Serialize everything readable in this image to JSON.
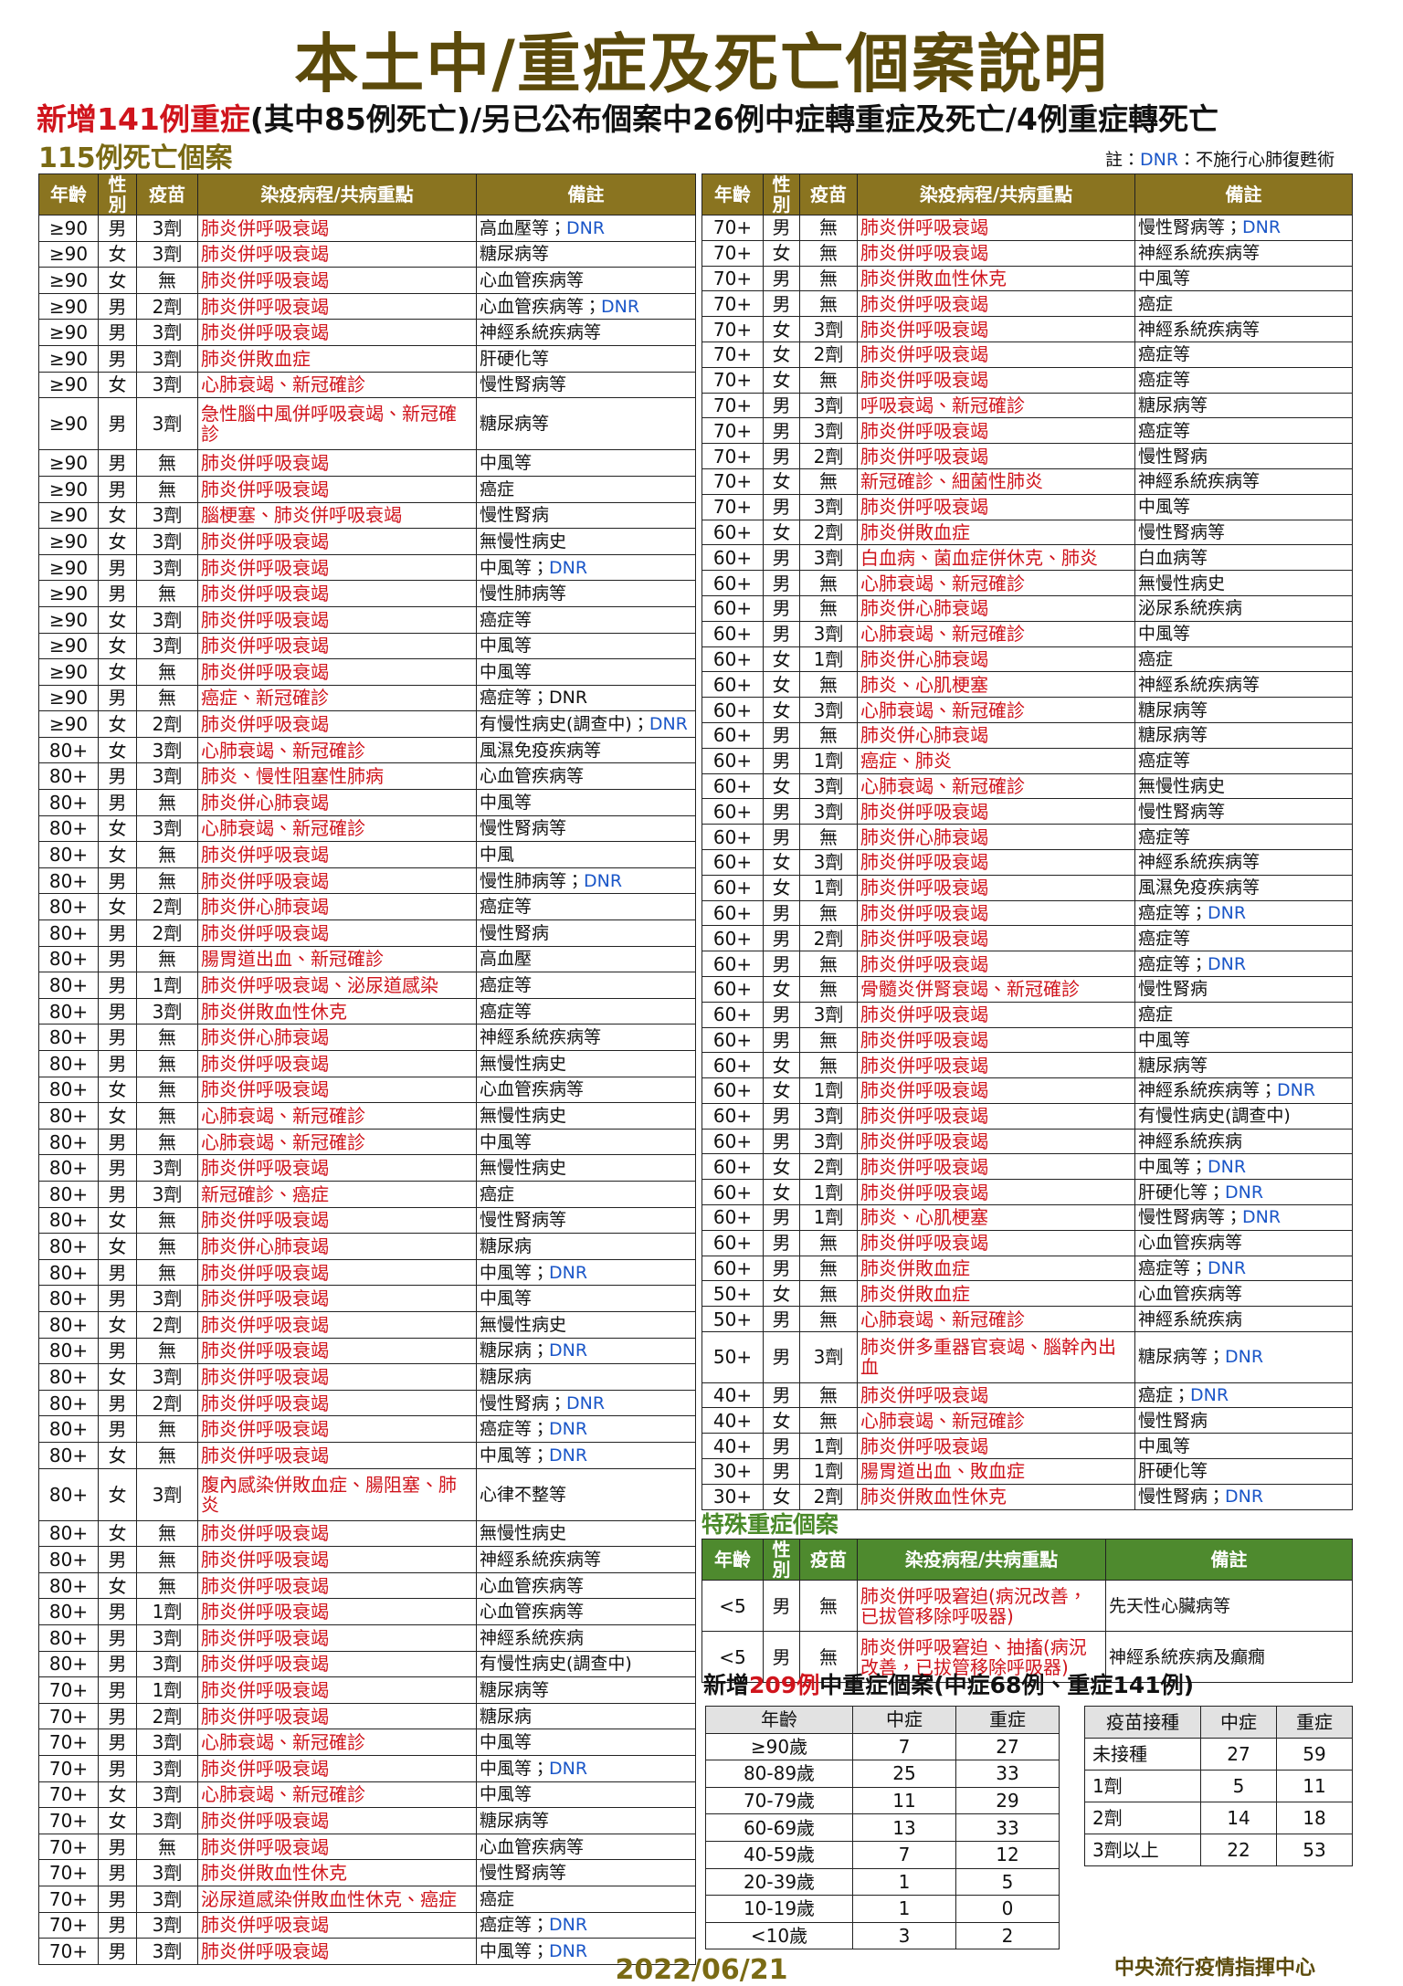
{
  "header": {
    "title": "本土中/重症及死亡個案說明",
    "subtitle_highlight": "新增141例重症",
    "subtitle_rest": "(其中85例死亡)/另已公布個案中26例中症轉重症及死亡/4例重症轉死亡"
  },
  "deaths": {
    "title": "115例死亡個案",
    "note": {
      "label": "註：",
      "dnr": "DNR",
      "text": "：不施行心肺復甦術"
    },
    "columns": [
      "年齡",
      "性別",
      "疫苗",
      "染疫病程/共病重點",
      "備註"
    ],
    "left_rows": [
      [
        "≥90",
        "男",
        "3劑",
        "肺炎併呼吸衰竭",
        "高血壓等；",
        "DNR"
      ],
      [
        "≥90",
        "女",
        "3劑",
        "肺炎併呼吸衰竭",
        "糖尿病等"
      ],
      [
        "≥90",
        "女",
        "無",
        "肺炎併呼吸衰竭",
        "心血管疾病等"
      ],
      [
        "≥90",
        "男",
        "2劑",
        "肺炎併呼吸衰竭",
        "心血管疾病等；",
        "DNR"
      ],
      [
        "≥90",
        "男",
        "3劑",
        "肺炎併呼吸衰竭",
        "神經系統疾病等"
      ],
      [
        "≥90",
        "男",
        "3劑",
        "肺炎併敗血症",
        "肝硬化等"
      ],
      [
        "≥90",
        "女",
        "3劑",
        "心肺衰竭、新冠確診",
        "慢性腎病等"
      ],
      [
        "≥90",
        "男",
        "3劑",
        "急性腦中風併呼吸衰竭、新冠確診",
        "糖尿病等"
      ],
      [
        "≥90",
        "男",
        "無",
        "肺炎併呼吸衰竭",
        "中風等"
      ],
      [
        "≥90",
        "男",
        "無",
        "肺炎併呼吸衰竭",
        "癌症"
      ],
      [
        "≥90",
        "女",
        "3劑",
        "腦梗塞、肺炎併呼吸衰竭",
        "慢性腎病"
      ],
      [
        "≥90",
        "女",
        "3劑",
        "肺炎併呼吸衰竭",
        "無慢性病史"
      ],
      [
        "≥90",
        "男",
        "3劑",
        "肺炎併呼吸衰竭",
        "中風等；",
        "DNR"
      ],
      [
        "≥90",
        "男",
        "無",
        "肺炎併呼吸衰竭",
        "慢性肺病等"
      ],
      [
        "≥90",
        "女",
        "3劑",
        "肺炎併呼吸衰竭",
        "癌症等"
      ],
      [
        "≥90",
        "女",
        "3劑",
        "肺炎併呼吸衰竭",
        "中風等"
      ],
      [
        "≥90",
        "女",
        "無",
        "肺炎併呼吸衰竭",
        "中風等"
      ],
      [
        "≥90",
        "男",
        "無",
        "癌症、新冠確診",
        "癌症等；DNR"
      ],
      [
        "≥90",
        "女",
        "2劑",
        "肺炎併呼吸衰竭",
        "有慢性病史(調查中)；",
        "DNR"
      ],
      [
        "80+",
        "女",
        "3劑",
        "心肺衰竭、新冠確診",
        "風濕免疫疾病等"
      ],
      [
        "80+",
        "男",
        "3劑",
        "肺炎、慢性阻塞性肺病",
        "心血管疾病等"
      ],
      [
        "80+",
        "男",
        "無",
        "肺炎併心肺衰竭",
        "中風等"
      ],
      [
        "80+",
        "女",
        "3劑",
        "心肺衰竭、新冠確診",
        "慢性腎病等"
      ],
      [
        "80+",
        "女",
        "無",
        "肺炎併呼吸衰竭",
        "中風"
      ],
      [
        "80+",
        "男",
        "無",
        "肺炎併呼吸衰竭",
        "慢性肺病等；",
        "DNR"
      ],
      [
        "80+",
        "女",
        "2劑",
        "肺炎併心肺衰竭",
        "癌症等"
      ],
      [
        "80+",
        "男",
        "2劑",
        "肺炎併呼吸衰竭",
        "慢性腎病"
      ],
      [
        "80+",
        "男",
        "無",
        "腸胃道出血、新冠確診",
        "高血壓"
      ],
      [
        "80+",
        "男",
        "1劑",
        "肺炎併呼吸衰竭、泌尿道感染",
        "癌症等"
      ],
      [
        "80+",
        "男",
        "3劑",
        "肺炎併敗血性休克",
        "癌症等"
      ],
      [
        "80+",
        "男",
        "無",
        "肺炎併心肺衰竭",
        "神經系統疾病等"
      ],
      [
        "80+",
        "男",
        "無",
        "肺炎併呼吸衰竭",
        "無慢性病史"
      ],
      [
        "80+",
        "女",
        "無",
        "肺炎併呼吸衰竭",
        "心血管疾病等"
      ],
      [
        "80+",
        "女",
        "無",
        "心肺衰竭、新冠確診",
        "無慢性病史"
      ],
      [
        "80+",
        "男",
        "無",
        "心肺衰竭、新冠確診",
        "中風等"
      ],
      [
        "80+",
        "男",
        "3劑",
        "肺炎併呼吸衰竭",
        "無慢性病史"
      ],
      [
        "80+",
        "男",
        "3劑",
        "新冠確診、癌症",
        "癌症"
      ],
      [
        "80+",
        "女",
        "無",
        "肺炎併呼吸衰竭",
        "慢性腎病等"
      ],
      [
        "80+",
        "女",
        "無",
        "肺炎併心肺衰竭",
        "糖尿病"
      ],
      [
        "80+",
        "男",
        "無",
        "肺炎併呼吸衰竭",
        "中風等；",
        "DNR"
      ],
      [
        "80+",
        "男",
        "3劑",
        "肺炎併呼吸衰竭",
        "中風等"
      ],
      [
        "80+",
        "女",
        "2劑",
        "肺炎併呼吸衰竭",
        "無慢性病史"
      ],
      [
        "80+",
        "男",
        "無",
        "肺炎併呼吸衰竭",
        "糖尿病；",
        "DNR"
      ],
      [
        "80+",
        "女",
        "3劑",
        "肺炎併呼吸衰竭",
        "糖尿病"
      ],
      [
        "80+",
        "男",
        "2劑",
        "肺炎併呼吸衰竭",
        "慢性腎病；",
        "DNR"
      ],
      [
        "80+",
        "男",
        "無",
        "肺炎併呼吸衰竭",
        "癌症等；",
        "DNR"
      ],
      [
        "80+",
        "女",
        "無",
        "肺炎併呼吸衰竭",
        "中風等；",
        "DNR"
      ],
      [
        "80+",
        "女",
        "3劑",
        "腹內感染併敗血症、腸阻塞、肺炎",
        "心律不整等"
      ],
      [
        "80+",
        "女",
        "無",
        "肺炎併呼吸衰竭",
        "無慢性病史"
      ],
      [
        "80+",
        "男",
        "無",
        "肺炎併呼吸衰竭",
        "神經系統疾病等"
      ],
      [
        "80+",
        "女",
        "無",
        "肺炎併呼吸衰竭",
        "心血管疾病等"
      ],
      [
        "80+",
        "男",
        "1劑",
        "肺炎併呼吸衰竭",
        "心血管疾病等"
      ],
      [
        "80+",
        "男",
        "3劑",
        "肺炎併呼吸衰竭",
        "神經系統疾病"
      ],
      [
        "80+",
        "男",
        "3劑",
        "肺炎併呼吸衰竭",
        "有慢性病史(調查中)"
      ],
      [
        "70+",
        "男",
        "1劑",
        "肺炎併呼吸衰竭",
        "糖尿病等"
      ],
      [
        "70+",
        "男",
        "2劑",
        "肺炎併呼吸衰竭",
        "糖尿病"
      ],
      [
        "70+",
        "男",
        "3劑",
        "心肺衰竭、新冠確診",
        "中風等"
      ],
      [
        "70+",
        "男",
        "3劑",
        "肺炎併呼吸衰竭",
        "中風等；",
        "DNR"
      ],
      [
        "70+",
        "女",
        "3劑",
        "心肺衰竭、新冠確診",
        "中風等"
      ],
      [
        "70+",
        "女",
        "3劑",
        "肺炎併呼吸衰竭",
        "糖尿病等"
      ],
      [
        "70+",
        "男",
        "無",
        "肺炎併呼吸衰竭",
        "心血管疾病等"
      ],
      [
        "70+",
        "男",
        "3劑",
        "肺炎併敗血性休克",
        "慢性腎病等"
      ],
      [
        "70+",
        "男",
        "3劑",
        "泌尿道感染併敗血性休克、癌症",
        "癌症"
      ],
      [
        "70+",
        "男",
        "3劑",
        "肺炎併呼吸衰竭",
        "癌症等；",
        "DNR"
      ],
      [
        "70+",
        "男",
        "3劑",
        "肺炎併呼吸衰竭",
        "中風等；",
        "DNR"
      ]
    ],
    "right_rows": [
      [
        "70+",
        "男",
        "無",
        "肺炎併呼吸衰竭",
        "慢性腎病等；",
        "DNR"
      ],
      [
        "70+",
        "女",
        "無",
        "肺炎併呼吸衰竭",
        "神經系統疾病等"
      ],
      [
        "70+",
        "男",
        "無",
        "肺炎併敗血性休克",
        "中風等"
      ],
      [
        "70+",
        "男",
        "無",
        "肺炎併呼吸衰竭",
        "癌症"
      ],
      [
        "70+",
        "女",
        "3劑",
        "肺炎併呼吸衰竭",
        "神經系統疾病等"
      ],
      [
        "70+",
        "女",
        "2劑",
        "肺炎併呼吸衰竭",
        "癌症等"
      ],
      [
        "70+",
        "女",
        "無",
        "肺炎併呼吸衰竭",
        "癌症等"
      ],
      [
        "70+",
        "男",
        "3劑",
        "呼吸衰竭、新冠確診",
        "糖尿病等"
      ],
      [
        "70+",
        "男",
        "3劑",
        "肺炎併呼吸衰竭",
        "癌症等"
      ],
      [
        "70+",
        "男",
        "2劑",
        "肺炎併呼吸衰竭",
        "慢性腎病"
      ],
      [
        "70+",
        "女",
        "無",
        "新冠確診、細菌性肺炎",
        "神經系統疾病等"
      ],
      [
        "70+",
        "男",
        "3劑",
        "肺炎併呼吸衰竭",
        "中風等"
      ],
      [
        "60+",
        "女",
        "2劑",
        "肺炎併敗血症",
        "慢性腎病等"
      ],
      [
        "60+",
        "男",
        "3劑",
        "白血病、菌血症併休克、肺炎",
        "白血病等"
      ],
      [
        "60+",
        "男",
        "無",
        "心肺衰竭、新冠確診",
        "無慢性病史"
      ],
      [
        "60+",
        "男",
        "無",
        "肺炎併心肺衰竭",
        "泌尿系統疾病"
      ],
      [
        "60+",
        "男",
        "3劑",
        "心肺衰竭、新冠確診",
        "中風等"
      ],
      [
        "60+",
        "女",
        "1劑",
        "肺炎併心肺衰竭",
        "癌症"
      ],
      [
        "60+",
        "女",
        "無",
        "肺炎、心肌梗塞",
        "神經系統疾病等"
      ],
      [
        "60+",
        "女",
        "3劑",
        "心肺衰竭、新冠確診",
        "糖尿病等"
      ],
      [
        "60+",
        "男",
        "無",
        "肺炎併心肺衰竭",
        "糖尿病等"
      ],
      [
        "60+",
        "男",
        "1劑",
        "癌症、肺炎",
        "癌症等"
      ],
      [
        "60+",
        "女",
        "3劑",
        "心肺衰竭、新冠確診",
        "無慢性病史"
      ],
      [
        "60+",
        "男",
        "3劑",
        "肺炎併呼吸衰竭",
        "慢性腎病等"
      ],
      [
        "60+",
        "男",
        "無",
        "肺炎併心肺衰竭",
        "癌症等"
      ],
      [
        "60+",
        "女",
        "3劑",
        "肺炎併呼吸衰竭",
        "神經系統疾病等"
      ],
      [
        "60+",
        "女",
        "1劑",
        "肺炎併呼吸衰竭",
        "風濕免疫疾病等"
      ],
      [
        "60+",
        "男",
        "無",
        "肺炎併呼吸衰竭",
        "癌症等；",
        "DNR"
      ],
      [
        "60+",
        "男",
        "2劑",
        "肺炎併呼吸衰竭",
        "癌症等"
      ],
      [
        "60+",
        "男",
        "無",
        "肺炎併呼吸衰竭",
        "癌症等；",
        "DNR"
      ],
      [
        "60+",
        "女",
        "無",
        "骨髓炎併腎衰竭、新冠確診",
        "慢性腎病"
      ],
      [
        "60+",
        "男",
        "3劑",
        "肺炎併呼吸衰竭",
        "癌症"
      ],
      [
        "60+",
        "男",
        "無",
        "肺炎併呼吸衰竭",
        "中風等"
      ],
      [
        "60+",
        "女",
        "無",
        "肺炎併呼吸衰竭",
        "糖尿病等"
      ],
      [
        "60+",
        "女",
        "1劑",
        "肺炎併呼吸衰竭",
        "神經系統疾病等；",
        "DNR"
      ],
      [
        "60+",
        "男",
        "3劑",
        "肺炎併呼吸衰竭",
        "有慢性病史(調查中)"
      ],
      [
        "60+",
        "男",
        "3劑",
        "肺炎併呼吸衰竭",
        "神經系統疾病"
      ],
      [
        "60+",
        "女",
        "2劑",
        "肺炎併呼吸衰竭",
        "中風等；",
        "DNR"
      ],
      [
        "60+",
        "女",
        "1劑",
        "肺炎併呼吸衰竭",
        "肝硬化等；",
        "DNR"
      ],
      [
        "60+",
        "男",
        "1劑",
        "肺炎、心肌梗塞",
        "慢性腎病等；",
        "DNR"
      ],
      [
        "60+",
        "男",
        "無",
        "肺炎併呼吸衰竭",
        "心血管疾病等"
      ],
      [
        "60+",
        "男",
        "無",
        "肺炎併敗血症",
        "癌症等；",
        "DNR"
      ],
      [
        "50+",
        "女",
        "無",
        "肺炎併敗血症",
        "心血管疾病等"
      ],
      [
        "50+",
        "男",
        "無",
        "心肺衰竭、新冠確診",
        "神經系統疾病"
      ],
      [
        "50+",
        "男",
        "3劑",
        "肺炎併多重器官衰竭、腦幹內出血",
        "糖尿病等；",
        "DNR"
      ],
      [
        "40+",
        "男",
        "無",
        "肺炎併呼吸衰竭",
        "癌症；",
        "DNR"
      ],
      [
        "40+",
        "女",
        "無",
        "心肺衰竭、新冠確診",
        "慢性腎病"
      ],
      [
        "40+",
        "男",
        "1劑",
        "肺炎併呼吸衰竭",
        "中風等"
      ],
      [
        "30+",
        "男",
        "1劑",
        "腸胃道出血、敗血症",
        "肝硬化等"
      ],
      [
        "30+",
        "女",
        "2劑",
        "肺炎併敗血性休克",
        "慢性腎病；",
        "DNR"
      ]
    ]
  },
  "special": {
    "title": "特殊重症個案",
    "columns": [
      "年齡",
      "性別",
      "疫苗",
      "染疫病程/共病重點",
      "備註"
    ],
    "rows": [
      [
        "<5",
        "男",
        "無",
        "肺炎併呼吸窘迫(病況改善，已拔管移除呼吸器)",
        "先天性心臟病等"
      ],
      [
        "<5",
        "男",
        "無",
        "肺炎併呼吸窘迫、抽搐(病況改善，已拔管移除呼吸器)",
        "神經系統疾病及癲癇"
      ]
    ]
  },
  "summary": {
    "title_pre": "新增",
    "title_highlight": "209例",
    "title_post": "中重症個案(中症68例、重症141例)",
    "age_table": {
      "columns": [
        "年齡",
        "中症",
        "重症"
      ],
      "rows": [
        [
          "≥90歲",
          7,
          27
        ],
        [
          "80-89歲",
          25,
          33
        ],
        [
          "70-79歲",
          11,
          29
        ],
        [
          "60-69歲",
          13,
          33
        ],
        [
          "40-59歲",
          7,
          12
        ],
        [
          "20-39歲",
          1,
          5
        ],
        [
          "10-19歲",
          1,
          0
        ],
        [
          "<10歲",
          3,
          2
        ]
      ]
    },
    "vaccine_table": {
      "columns": [
        "疫苗接種",
        "中症",
        "重症"
      ],
      "rows": [
        [
          "未接種",
          27,
          59
        ],
        [
          "1劑",
          5,
          11
        ],
        [
          "2劑",
          14,
          18
        ],
        [
          "3劑以上",
          22,
          53
        ]
      ]
    }
  },
  "footer": {
    "date": "2022/06/21",
    "agency": "中央流行疫情指揮中心"
  }
}
